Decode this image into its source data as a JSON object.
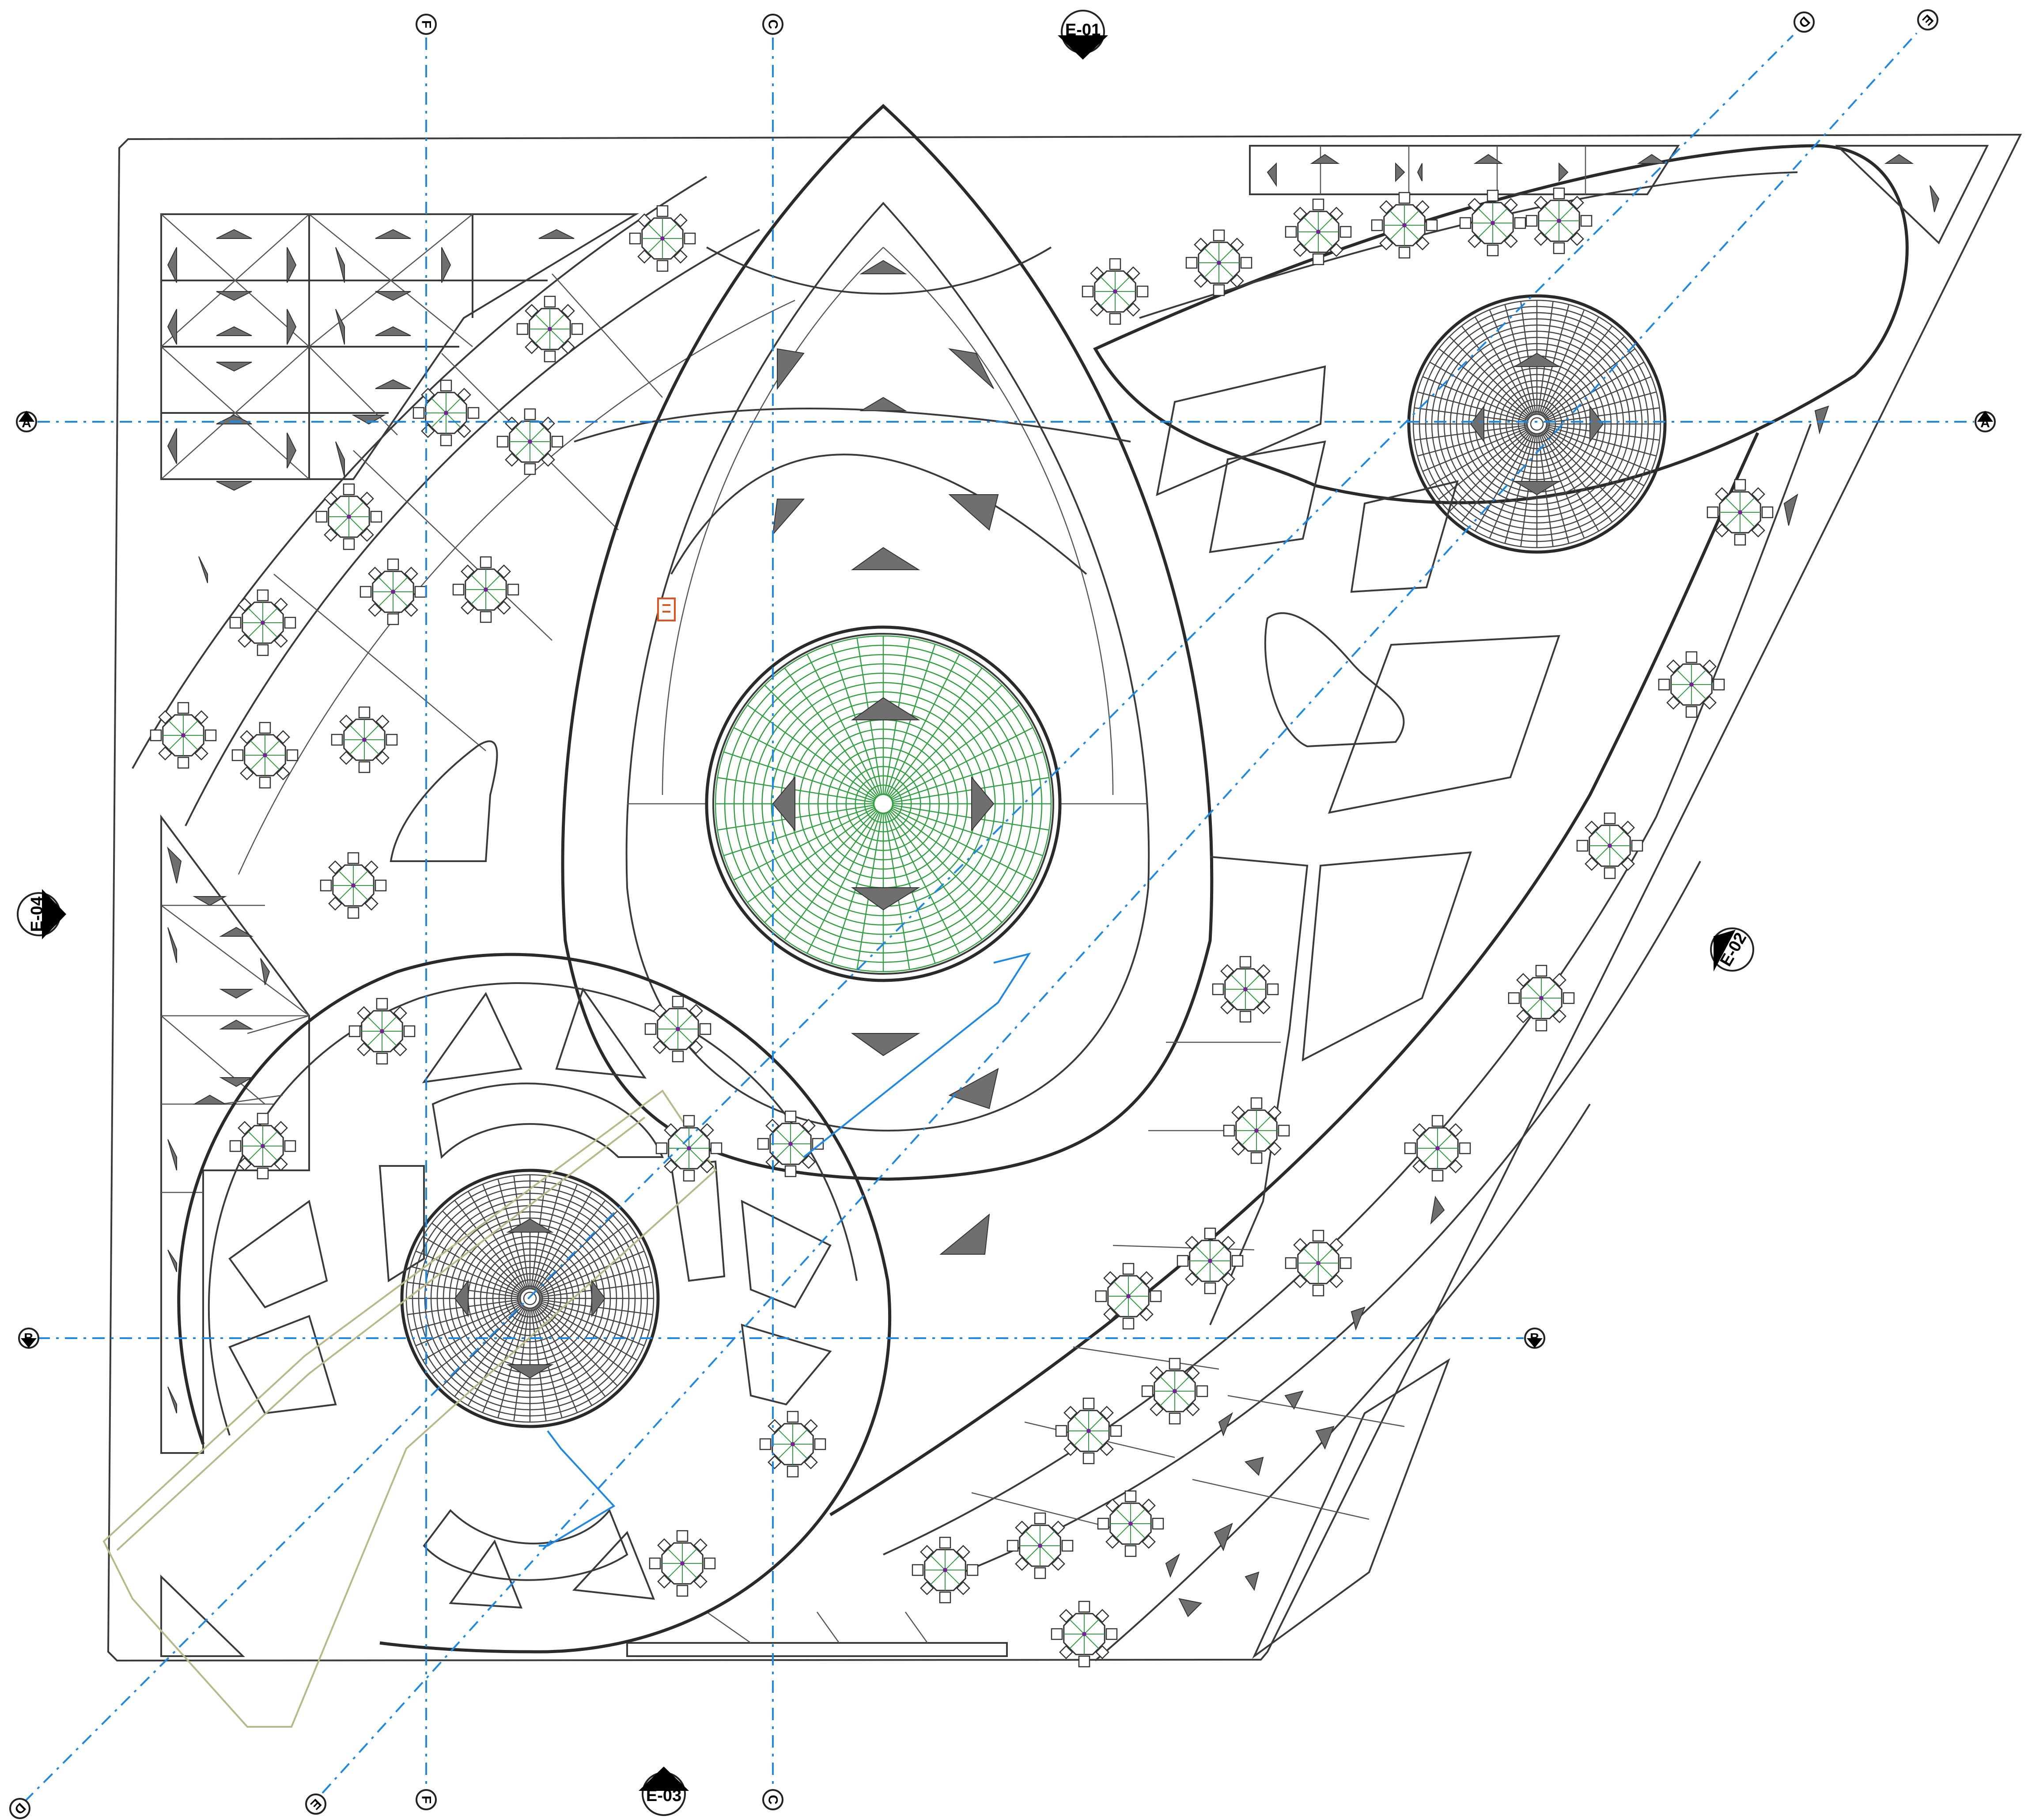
{
  "drawing": {
    "grid_bubbles": {
      "a": "A",
      "b": "B",
      "c": "C",
      "d": "D",
      "e": "E",
      "f": "F"
    },
    "elevation_markers": {
      "e01": "E-01",
      "e02": "E-02",
      "e03": "E-03",
      "e04": "E-04"
    },
    "colors": {
      "grid_axis": "#1e88e5",
      "dome_glazing": "#2e9e3e",
      "linework": "#3a3a3a",
      "stair": "#e0531f",
      "landscape": "#b7b98a"
    },
    "icons": [
      "grid-bubble-icon",
      "elevation-marker-icon",
      "dining-table-icon",
      "skylight-triangle-icon",
      "stair-icon",
      "dome-icon"
    ]
  }
}
